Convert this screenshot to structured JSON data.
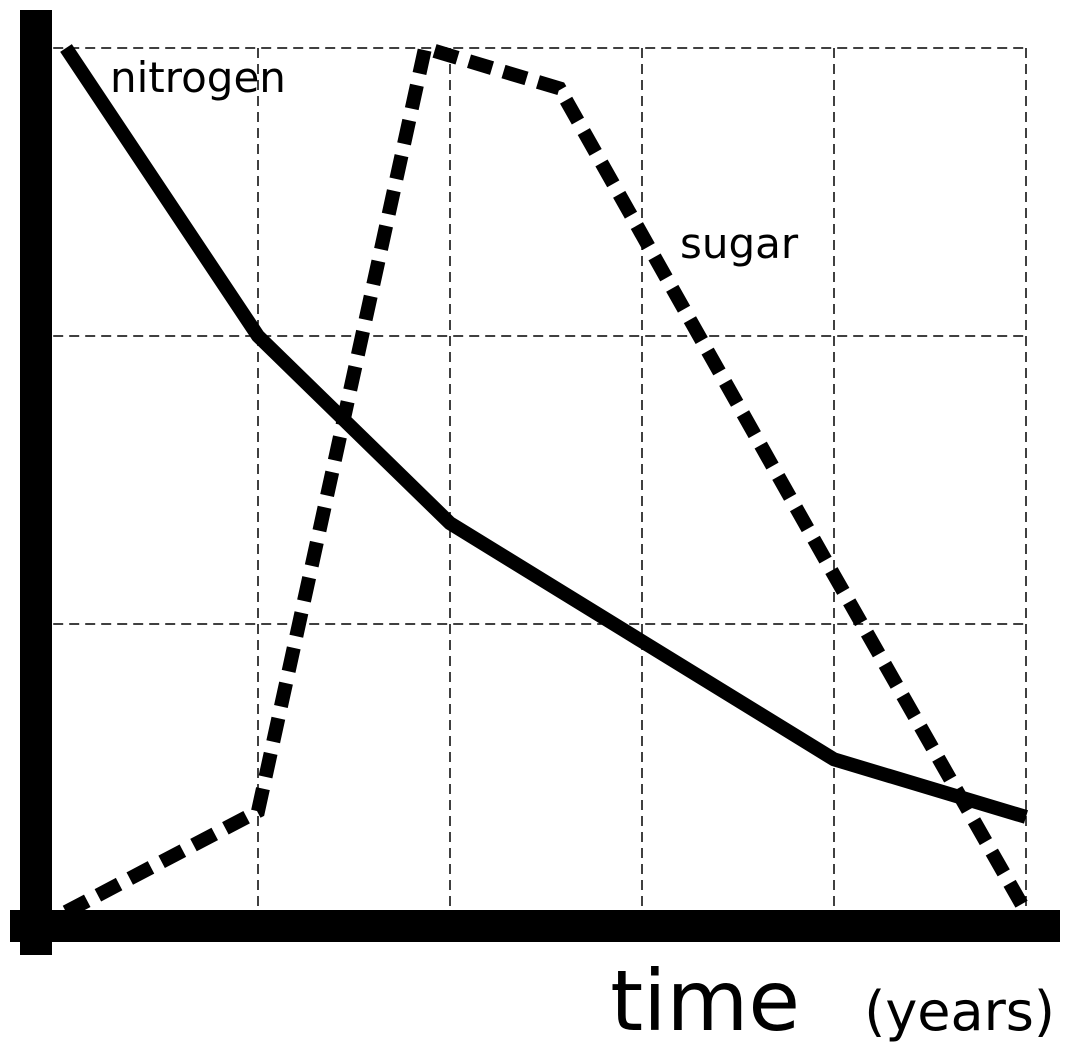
{
  "chart_data": {
    "type": "line",
    "x_label": "time",
    "x_unit": "(years)",
    "xlim": [
      -0.15,
      5.15
    ],
    "ylim": [
      -0.05,
      3.13
    ],
    "xticks": [
      1,
      2,
      3,
      4,
      5
    ],
    "yticks": [
      1,
      2,
      3
    ],
    "grid": true,
    "series": [
      {
        "name": "nitrogen",
        "color": "#000000",
        "style": "solid",
        "x": [
          0,
          1,
          2,
          3,
          4,
          5
        ],
        "values": [
          3.0,
          2.0,
          1.35,
          0.94,
          0.53,
          0.33
        ]
      },
      {
        "name": "sugar",
        "color": "#000000",
        "style": "dashed",
        "x": [
          0,
          1,
          1.87,
          2.57,
          4,
          5
        ],
        "values": [
          0.0,
          0.35,
          3.0,
          2.86,
          1.17,
          0.0
        ]
      }
    ]
  }
}
